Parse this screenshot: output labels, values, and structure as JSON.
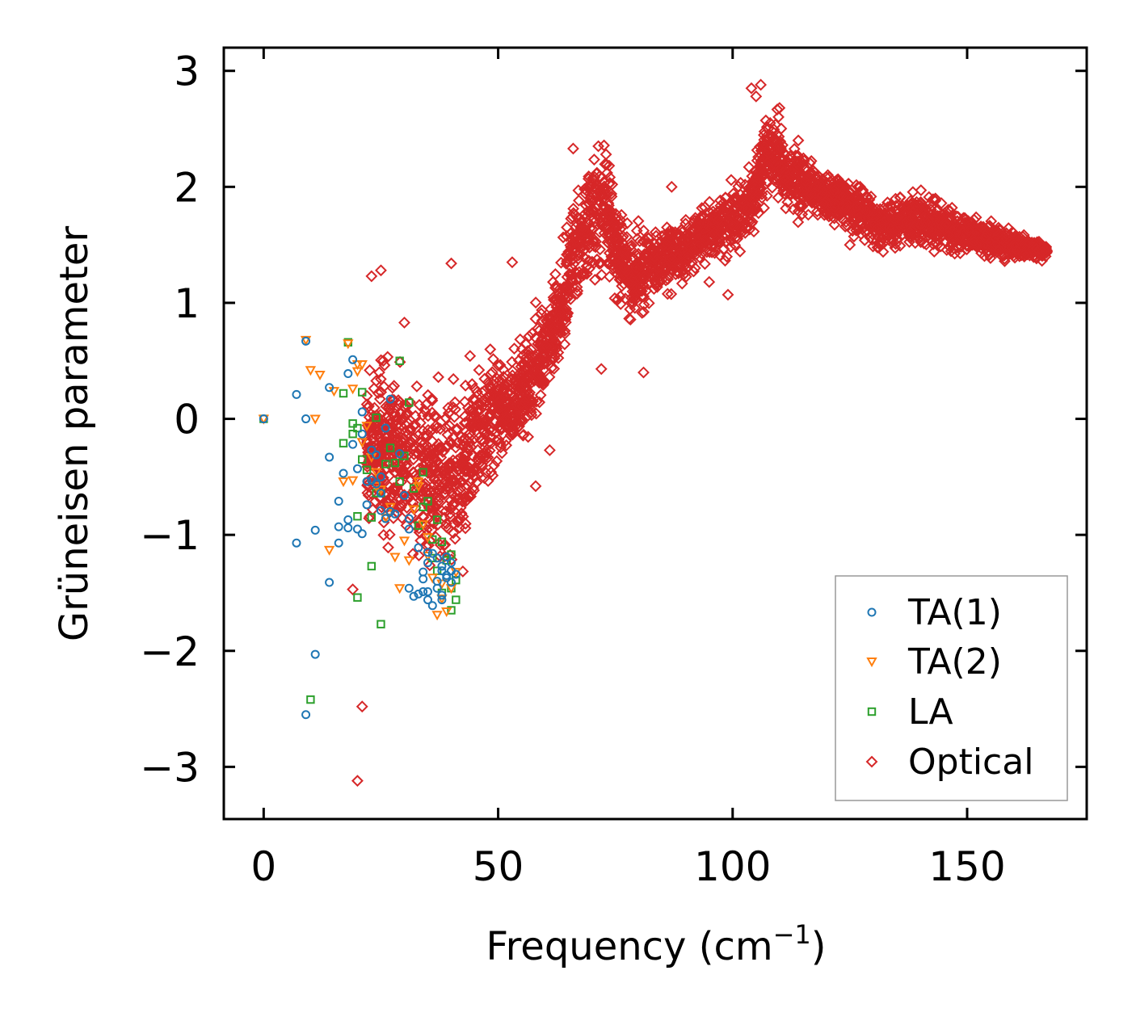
{
  "chart_data": {
    "type": "scatter",
    "xlabel": "Frequency (cm",
    "xlabel_sup": "−1",
    "xlabel_close": ")",
    "ylabel": "Grüneisen parameter",
    "xlim": [
      -8.5,
      175.5
    ],
    "ylim": [
      -3.45,
      3.2
    ],
    "xticks": [
      0,
      50,
      100,
      150
    ],
    "yticks": [
      -3,
      -2,
      -1,
      0,
      1,
      2,
      3
    ],
    "xtick_labels": [
      "0",
      "50",
      "100",
      "150"
    ],
    "ytick_labels": [
      "−3",
      "−2",
      "−1",
      "0",
      "1",
      "2",
      "3"
    ],
    "legend": {
      "location": "lower-right",
      "entries": [
        "TA(1)",
        "TA(2)",
        "LA",
        "Optical"
      ]
    },
    "series": [
      {
        "name": "TA(1)",
        "color": "#1f77b4",
        "marker": "circle",
        "points": [
          [
            0,
            0
          ],
          [
            7,
            -1.07
          ],
          [
            7,
            0.21
          ],
          [
            9,
            0.67
          ],
          [
            9,
            0
          ],
          [
            9,
            -2.55
          ],
          [
            11,
            -0.96
          ],
          [
            11,
            -2.03
          ],
          [
            14,
            -1.41
          ],
          [
            14,
            -0.33
          ],
          [
            14,
            0.27
          ],
          [
            16,
            -1.07
          ],
          [
            16,
            -0.71
          ],
          [
            16,
            -0.93
          ],
          [
            17,
            -0.47
          ],
          [
            18,
            0.39
          ],
          [
            18,
            -0.87
          ],
          [
            18,
            -0.94
          ],
          [
            19,
            -0.22
          ],
          [
            19,
            0.51
          ],
          [
            20,
            -0.95
          ],
          [
            20,
            -0.43
          ],
          [
            21,
            -0.99
          ],
          [
            21,
            -0.13
          ],
          [
            21,
            0.06
          ],
          [
            22,
            -0.74
          ],
          [
            22,
            -0.54
          ],
          [
            23,
            -0.27
          ],
          [
            23,
            -0.53
          ],
          [
            24,
            -0.56
          ],
          [
            24,
            -0.31
          ],
          [
            25,
            -0.5
          ],
          [
            25,
            -0.79
          ],
          [
            25,
            -0.64
          ],
          [
            26,
            -0.86
          ],
          [
            26,
            -0.08
          ],
          [
            27,
            0.17
          ],
          [
            27,
            -0.8
          ],
          [
            28,
            -0.82
          ],
          [
            29,
            -0.3
          ],
          [
            30,
            -0.66
          ],
          [
            31,
            -0.86
          ],
          [
            31,
            -0.95
          ],
          [
            31,
            -1.46
          ],
          [
            32,
            -1.53
          ],
          [
            33,
            -1.11
          ],
          [
            33,
            -1.51
          ],
          [
            34,
            -1.38
          ],
          [
            34,
            -1.32
          ],
          [
            34,
            -1.49
          ],
          [
            35,
            -1.56
          ],
          [
            35,
            -1.15
          ],
          [
            35,
            -1.24
          ],
          [
            35,
            -1.49
          ],
          [
            36,
            -1.61
          ],
          [
            36,
            -1.16
          ],
          [
            37,
            -1.46
          ],
          [
            37,
            -1.4
          ],
          [
            37,
            -1.2
          ],
          [
            38,
            -1.52
          ],
          [
            38,
            -1.27
          ],
          [
            38,
            -1.31
          ],
          [
            38,
            -1.56
          ],
          [
            39,
            -1.19
          ],
          [
            39,
            -1.35
          ],
          [
            39,
            -1.37
          ],
          [
            40,
            -1.31
          ],
          [
            40,
            -1.41
          ],
          [
            40,
            -1.24
          ],
          [
            41,
            -1.34
          ]
        ]
      },
      {
        "name": "TA(2)",
        "color": "#ff7f0e",
        "marker": "triangle-down",
        "points": [
          [
            0,
            0
          ],
          [
            9,
            0.68
          ],
          [
            10,
            0.42
          ],
          [
            11,
            0
          ],
          [
            12,
            0.38
          ],
          [
            14,
            -1.13
          ],
          [
            15,
            0.24
          ],
          [
            17,
            -0.54
          ],
          [
            18,
            0.65
          ],
          [
            19,
            0.26
          ],
          [
            19,
            -0.53
          ],
          [
            20,
            0.41
          ],
          [
            20,
            0.47
          ],
          [
            21,
            -0.2
          ],
          [
            21,
            0.47
          ],
          [
            22,
            -0.06
          ],
          [
            23,
            -0.33
          ],
          [
            24,
            -0.46
          ],
          [
            24,
            -0.58
          ],
          [
            25,
            -0.61
          ],
          [
            26,
            -0.85
          ],
          [
            27,
            -0.76
          ],
          [
            28,
            -1.19
          ],
          [
            29,
            -1.46
          ],
          [
            30,
            -1.05
          ],
          [
            31,
            -1.22
          ],
          [
            32,
            -0.78
          ],
          [
            33,
            -0.58
          ],
          [
            33,
            -0.54
          ],
          [
            34,
            -0.91
          ],
          [
            35,
            -1.02
          ],
          [
            35,
            -1.18
          ],
          [
            36,
            -1.37
          ],
          [
            37,
            -1.69
          ],
          [
            38,
            -1.55
          ],
          [
            38,
            -1.42
          ],
          [
            39,
            -1.66
          ],
          [
            40,
            -1.46
          ],
          [
            41,
            -1.32
          ]
        ]
      },
      {
        "name": "LA",
        "color": "#2ca02c",
        "marker": "square",
        "points": [
          [
            0,
            0
          ],
          [
            10,
            -2.42
          ],
          [
            17,
            0.22
          ],
          [
            17,
            -0.21
          ],
          [
            18,
            0.66
          ],
          [
            19,
            -0.13
          ],
          [
            19,
            -0.04
          ],
          [
            20,
            -1.54
          ],
          [
            20,
            -0.84
          ],
          [
            20,
            -0.08
          ],
          [
            21,
            0.23
          ],
          [
            21,
            -0.35
          ],
          [
            22,
            -0.44
          ],
          [
            23,
            -1.27
          ],
          [
            23,
            -0.85
          ],
          [
            24,
            -0.64
          ],
          [
            24,
            0.01
          ],
          [
            25,
            -1.77
          ],
          [
            25,
            -0.64
          ],
          [
            26,
            -0.39
          ],
          [
            27,
            -0.25
          ],
          [
            28,
            -0.38
          ],
          [
            29,
            0.5
          ],
          [
            29,
            -0.54
          ],
          [
            30,
            -0.32
          ],
          [
            31,
            0.14
          ],
          [
            32,
            -0.6
          ],
          [
            33,
            -0.92
          ],
          [
            34,
            -0.46
          ],
          [
            34,
            -0.76
          ],
          [
            35,
            -0.71
          ],
          [
            36,
            -1.04
          ],
          [
            36,
            -1.2
          ],
          [
            37,
            -0.87
          ],
          [
            37,
            -1.31
          ],
          [
            38,
            -1.06
          ],
          [
            38,
            -1.5
          ],
          [
            39,
            -1.22
          ],
          [
            40,
            -1.17
          ],
          [
            40,
            -1.46
          ],
          [
            40,
            -1.65
          ],
          [
            41,
            -1.39
          ],
          [
            41,
            -1.56
          ]
        ]
      },
      {
        "name": "Optical",
        "color": "#d62728",
        "marker": "diamond",
        "band": {
          "generator": "dense-band",
          "count": 3600,
          "seed": 7,
          "freq_range": [
            22,
            167
          ],
          "center": [
            [
              22,
              -0.25
            ],
            [
              30,
              -0.3
            ],
            [
              38,
              -0.55
            ],
            [
              42,
              -0.45
            ],
            [
              46,
              -0.1
            ],
            [
              50,
              0.05
            ],
            [
              55,
              0.2
            ],
            [
              60,
              0.6
            ],
            [
              64,
              1.0
            ],
            [
              66,
              1.45
            ],
            [
              68,
              1.55
            ],
            [
              70,
              1.7
            ],
            [
              73,
              1.85
            ],
            [
              75,
              1.5
            ],
            [
              78,
              1.2
            ],
            [
              82,
              1.3
            ],
            [
              88,
              1.45
            ],
            [
              95,
              1.62
            ],
            [
              100,
              1.72
            ],
            [
              104,
              1.85
            ],
            [
              107,
              2.3
            ],
            [
              109,
              2.25
            ],
            [
              112,
              2.1
            ],
            [
              118,
              1.95
            ],
            [
              125,
              1.85
            ],
            [
              132,
              1.68
            ],
            [
              140,
              1.72
            ],
            [
              150,
              1.58
            ],
            [
              160,
              1.5
            ],
            [
              167,
              1.44
            ]
          ],
          "spread": [
            [
              22,
              0.55
            ],
            [
              35,
              0.7
            ],
            [
              42,
              0.65
            ],
            [
              48,
              0.45
            ],
            [
              55,
              0.35
            ],
            [
              62,
              0.35
            ],
            [
              68,
              0.45
            ],
            [
              75,
              0.4
            ],
            [
              85,
              0.25
            ],
            [
              95,
              0.2
            ],
            [
              105,
              0.3
            ],
            [
              110,
              0.32
            ],
            [
              120,
              0.18
            ],
            [
              140,
              0.2
            ],
            [
              167,
              0.06
            ]
          ]
        },
        "points": [
          [
            20,
            -3.12
          ],
          [
            21,
            -2.48
          ],
          [
            19,
            -1.47
          ],
          [
            23,
            1.23
          ],
          [
            25,
            1.28
          ],
          [
            40,
            1.34
          ],
          [
            53,
            1.35
          ],
          [
            66,
            2.33
          ],
          [
            73,
            2.28
          ],
          [
            72,
            0.43
          ],
          [
            81,
            0.4
          ],
          [
            87,
            2.0
          ],
          [
            92,
            1.3
          ],
          [
            95,
            1.18
          ],
          [
            99,
            1.07
          ],
          [
            104,
            2.85
          ],
          [
            105,
            2.78
          ],
          [
            106,
            2.88
          ],
          [
            110,
            2.68
          ],
          [
            108,
            2.55
          ],
          [
            114,
            2.4
          ],
          [
            125,
            1.5
          ],
          [
            166,
            1.44
          ],
          [
            160,
            1.5
          ],
          [
            158,
            1.38
          ],
          [
            61,
            -0.27
          ],
          [
            58,
            -0.58
          ],
          [
            30,
            0.83
          ]
        ]
      }
    ]
  }
}
